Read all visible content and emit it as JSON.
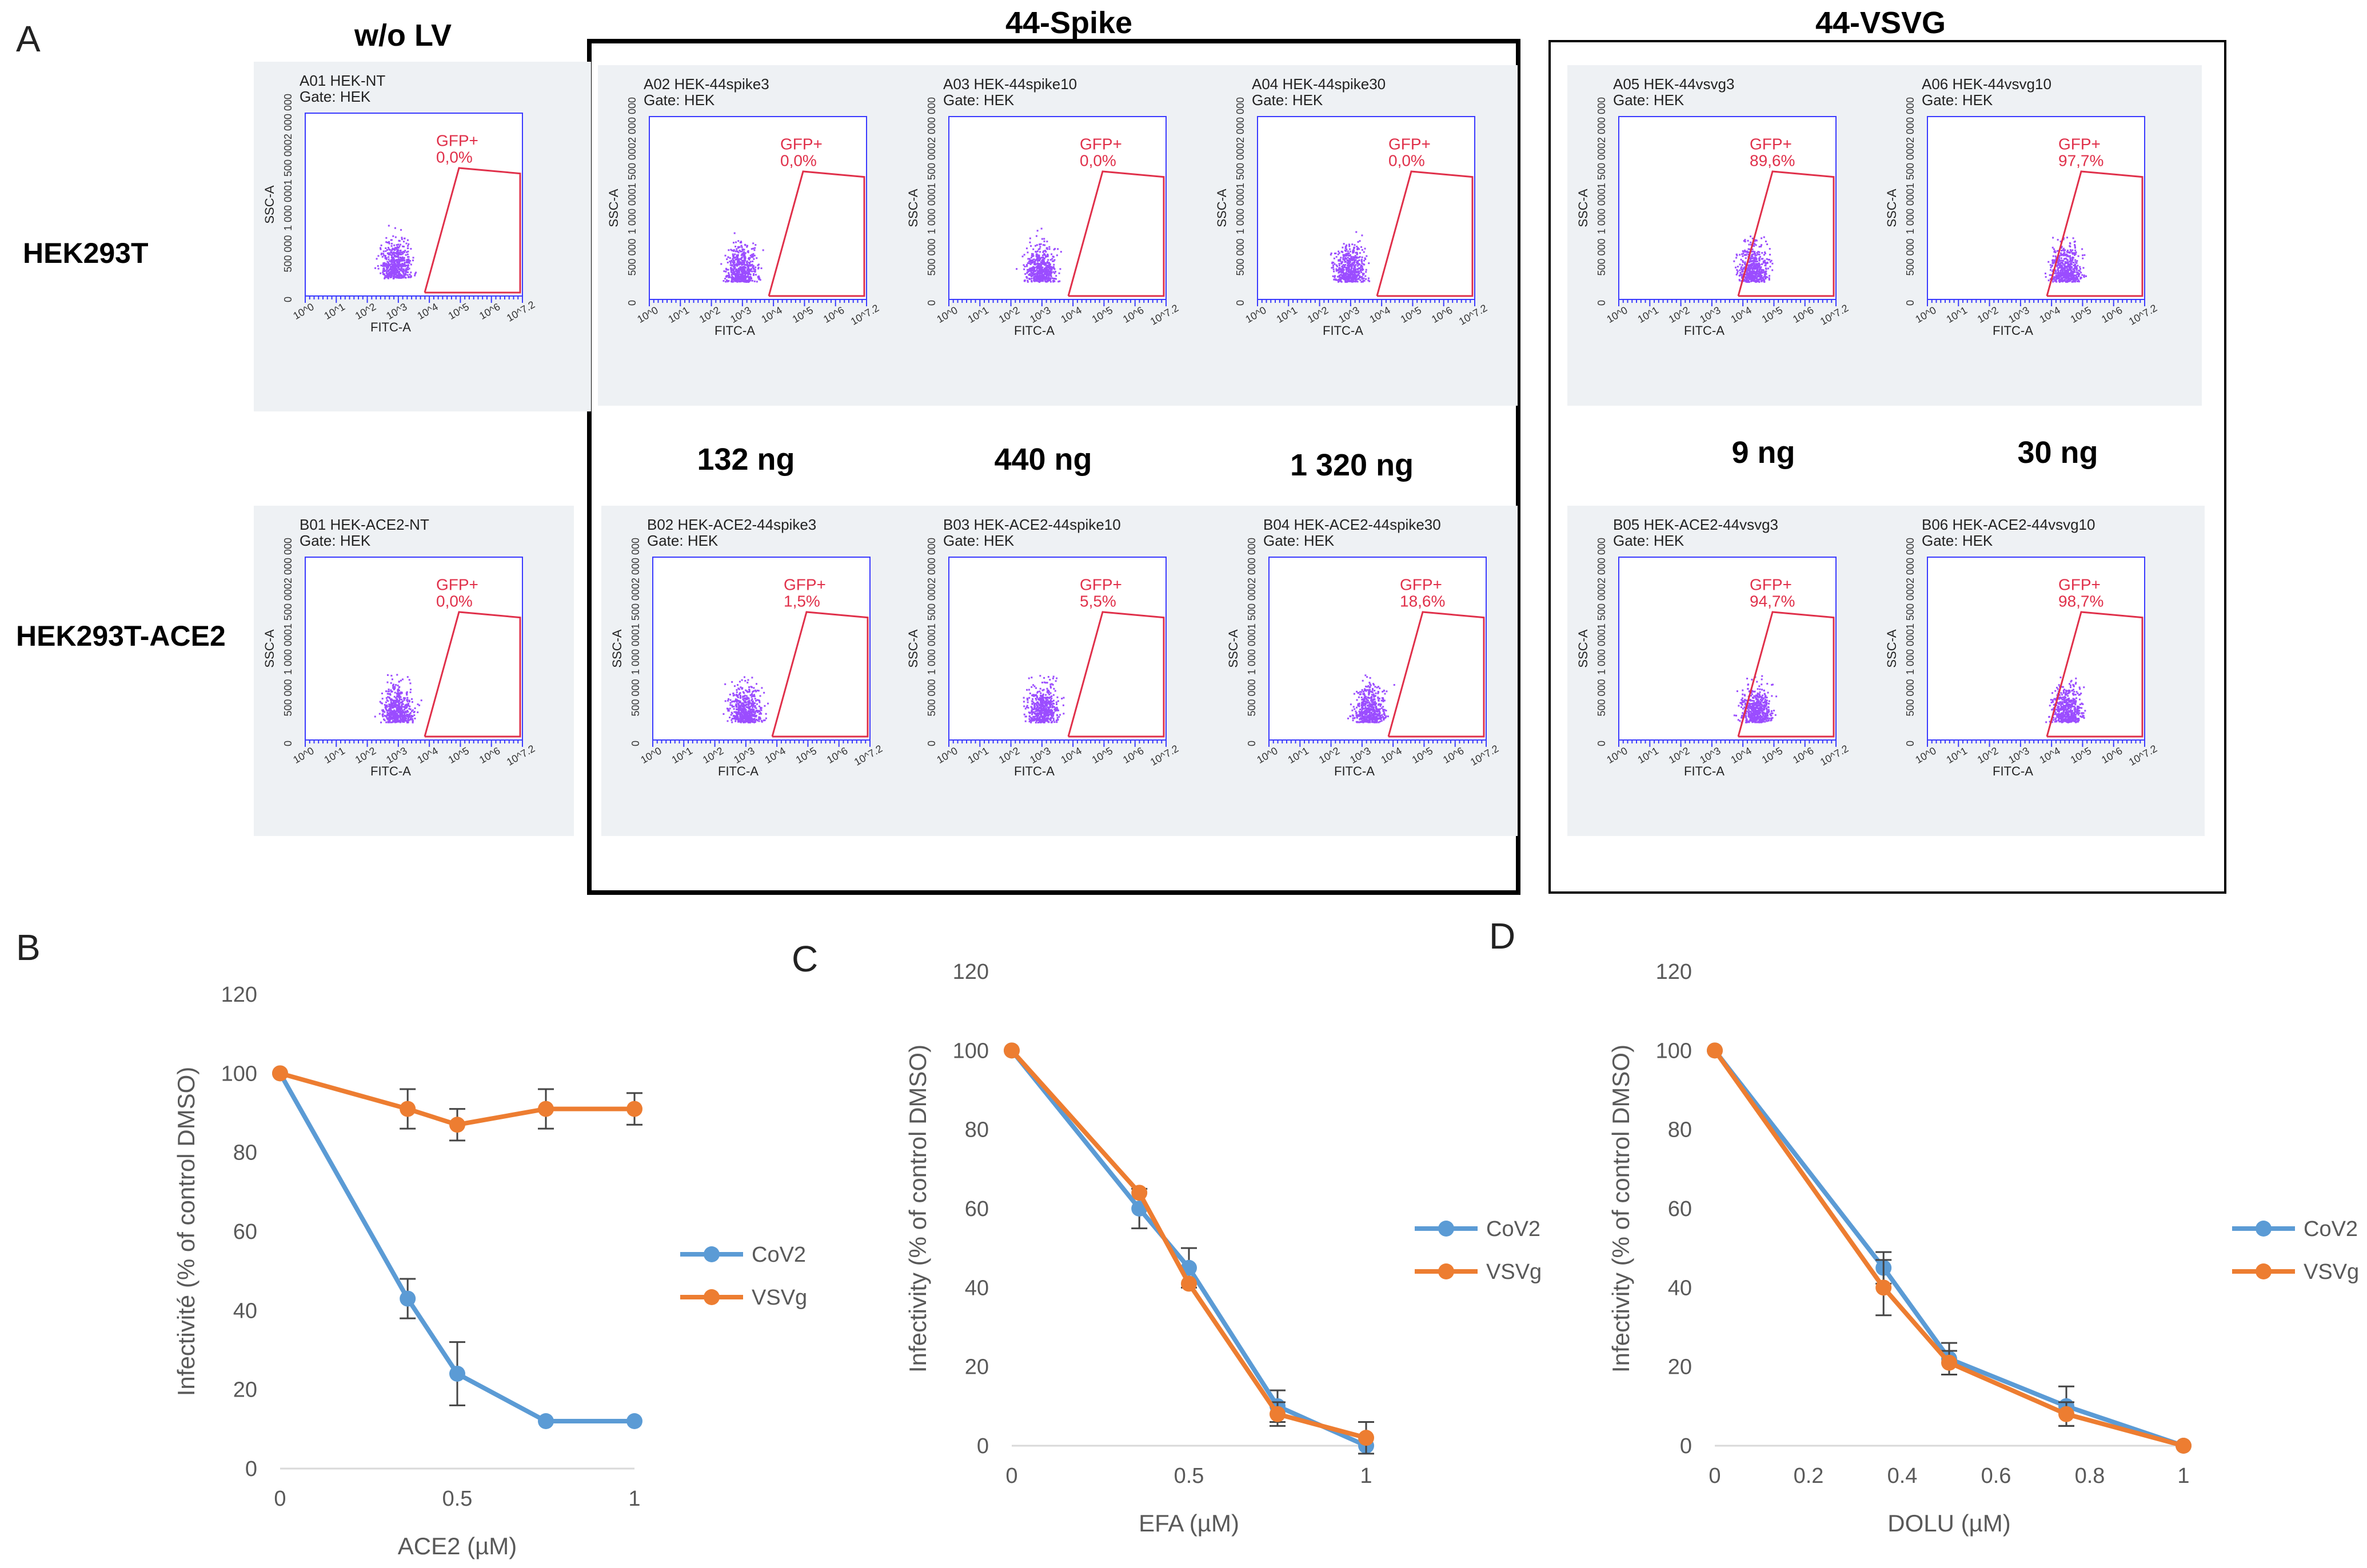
{
  "panel_labels": {
    "a": "A",
    "b": "B",
    "c": "C",
    "d": "D"
  },
  "column_headers": {
    "no_lv": "w/o LV",
    "spike": "44-Spike",
    "vsvg": "44-VSVG"
  },
  "row_labels": {
    "row1": "HEK293T",
    "row2": "HEK293T-ACE2"
  },
  "dose_labels": {
    "d132": "132 ng",
    "d440": "440 ng",
    "d1320": "1 320 ng",
    "d9": "9 ng",
    "d30": "30 ng"
  },
  "flow_common": {
    "gate_line": "Gate: HEK",
    "gate_name": "GFP+",
    "x_axis": "FITC-A",
    "y_axis": "SSC-A",
    "y_ticks": [
      "2 000 000",
      "1 500 000",
      "1 000 000",
      "500 000",
      "0"
    ],
    "x_ticks": [
      "10^0",
      "10^1",
      "10^2",
      "10^3",
      "10^4",
      "10^5",
      "10^6",
      "10^7.2"
    ]
  },
  "flow_plots": [
    {
      "title": "A01 HEK-NT",
      "pct": "0,0%"
    },
    {
      "title": "A02 HEK-44spike3",
      "pct": "0,0%"
    },
    {
      "title": "A03 HEK-44spike10",
      "pct": "0,0%"
    },
    {
      "title": "A04 HEK-44spike30",
      "pct": "0,0%"
    },
    {
      "title": "A05 HEK-44vsvg3",
      "pct": "89,6%"
    },
    {
      "title": "A06 HEK-44vsvg10",
      "pct": "97,7%"
    },
    {
      "title": "B01 HEK-ACE2-NT",
      "pct": "0,0%"
    },
    {
      "title": "B02 HEK-ACE2-44spike3",
      "pct": "1,5%"
    },
    {
      "title": "B03 HEK-ACE2-44spike10",
      "pct": "5,5%"
    },
    {
      "title": "B04 HEK-ACE2-44spike30",
      "pct": "18,6%"
    },
    {
      "title": "B05 HEK-ACE2-44vsvg3",
      "pct": "94,7%"
    },
    {
      "title": "B06 HEK-ACE2-44vsvg10",
      "pct": "98,7%"
    }
  ],
  "colors": {
    "cov2": "#5b9bd5",
    "vsvg": "#ed7d31",
    "gate": "#e0304a",
    "dots": "#9b4dff",
    "axis": "#d9d9d9"
  },
  "chart_data": [
    {
      "type": "line",
      "panel": "B",
      "title": "",
      "xlabel": "ACE2 (µM)",
      "ylabel": "Infectivité (% of control DMSO)",
      "xlim": [
        0,
        1
      ],
      "ylim": [
        0,
        120
      ],
      "x_ticks": [
        "0",
        "0.5",
        "1"
      ],
      "y_ticks": [
        "0",
        "20",
        "40",
        "60",
        "80",
        "100",
        "120"
      ],
      "legend": "right",
      "series": [
        {
          "name": "CoV2",
          "x": [
            0,
            0.36,
            0.5,
            0.75,
            1
          ],
          "values": [
            100,
            43,
            24,
            12,
            12
          ],
          "err": [
            0,
            5,
            8,
            0,
            0
          ]
        },
        {
          "name": "VSVg",
          "x": [
            0,
            0.36,
            0.5,
            0.75,
            1
          ],
          "values": [
            100,
            91,
            87,
            91,
            91
          ],
          "err": [
            0,
            5,
            4,
            5,
            4
          ]
        }
      ]
    },
    {
      "type": "line",
      "panel": "C",
      "title": "",
      "xlabel": "EFA (µM)",
      "ylabel": "Infectivity (% of control DMSO)",
      "xlim": [
        0,
        1
      ],
      "ylim": [
        0,
        120
      ],
      "x_ticks": [
        "0",
        "0.5",
        "1"
      ],
      "y_ticks": [
        "0",
        "20",
        "40",
        "60",
        "80",
        "100",
        "120"
      ],
      "legend": "right",
      "series": [
        {
          "name": "CoV2",
          "x": [
            0,
            0.36,
            0.5,
            0.75,
            1
          ],
          "values": [
            100,
            60,
            45,
            10,
            0
          ],
          "err": [
            0,
            5,
            5,
            4,
            0
          ]
        },
        {
          "name": "VSVg",
          "x": [
            0,
            0.36,
            0.5,
            0.75,
            1
          ],
          "values": [
            100,
            64,
            41,
            8,
            2
          ],
          "err": [
            0,
            0,
            0,
            3,
            4
          ]
        }
      ]
    },
    {
      "type": "line",
      "panel": "D",
      "title": "",
      "xlabel": "DOLU (µM)",
      "ylabel": "Infectivity (% of control DMSO)",
      "xlim": [
        0,
        1
      ],
      "ylim": [
        0,
        120
      ],
      "x_ticks": [
        "0",
        "0.2",
        "0.4",
        "0.6",
        "0.8",
        "1"
      ],
      "y_ticks": [
        "0",
        "20",
        "40",
        "60",
        "80",
        "100",
        "120"
      ],
      "legend": "right",
      "series": [
        {
          "name": "CoV2",
          "x": [
            0,
            0.36,
            0.5,
            0.75,
            1
          ],
          "values": [
            100,
            45,
            22,
            10,
            0
          ],
          "err": [
            0,
            4,
            4,
            5,
            0
          ]
        },
        {
          "name": "VSVg",
          "x": [
            0,
            0.36,
            0.5,
            0.75,
            1
          ],
          "values": [
            100,
            40,
            21,
            8,
            0
          ],
          "err": [
            0,
            7,
            3,
            3,
            0
          ]
        }
      ]
    }
  ]
}
